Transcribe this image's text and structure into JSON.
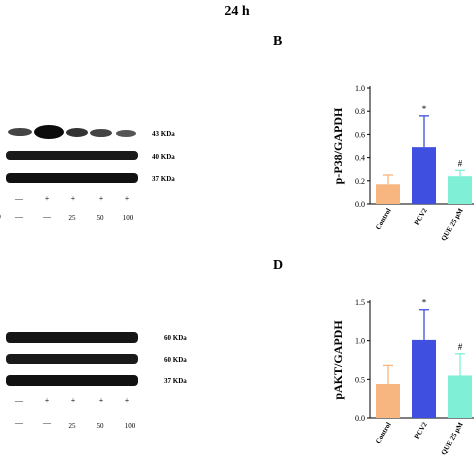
{
  "figure": {
    "title": "24 h",
    "panels": [
      {
        "letter": "B",
        "kda_labels": [
          "43 KDa",
          "40 KDa",
          "37 KDa"
        ],
        "dose_labels": [
          "25",
          "50",
          "100"
        ],
        "row_marks": [
          "—",
          "—",
          "+",
          "+",
          "+",
          "+"
        ],
        "lead_fragment": "0"
      },
      {
        "letter": "D",
        "kda_labels": [
          "60 KDa",
          "60 KDa",
          "37 KDa"
        ],
        "dose_labels": [
          "25",
          "50",
          "100"
        ],
        "row_marks": [
          "—",
          "+",
          "+",
          "+",
          "+"
        ],
        "row2_marks": [
          "—",
          "—"
        ]
      }
    ]
  },
  "colors": {
    "control": "#f7b57f",
    "pcv2": "#3f4fe0",
    "que": "#7ff0d6",
    "error_bar": "#3f4fe0"
  },
  "chart_data": [
    {
      "type": "bar",
      "ylabel": "p-P38/GAPDH",
      "ylim": [
        0,
        1.0
      ],
      "yticks": [
        "0.0",
        "0.2",
        "0.4",
        "0.6",
        "0.8",
        "1.0"
      ],
      "categories": [
        "Control",
        "PCV2",
        "QUE 25 μM",
        "QUE"
      ],
      "values": [
        0.17,
        0.49,
        0.24,
        null
      ],
      "errors": [
        0.08,
        0.27,
        0.05,
        null
      ],
      "annotations": [
        "",
        "*",
        "#",
        ""
      ]
    },
    {
      "type": "bar",
      "ylabel": "pAKT/GAPDH",
      "ylim": [
        0,
        1.5
      ],
      "yticks": [
        "0.0",
        "0.5",
        "1.0",
        "1.5"
      ],
      "categories": [
        "Control",
        "PCV2",
        "QUE 25 μM",
        "QUE"
      ],
      "values": [
        0.44,
        1.01,
        0.55,
        null
      ],
      "errors": [
        0.24,
        0.39,
        0.28,
        null
      ],
      "annotations": [
        "",
        "*",
        "#",
        ""
      ]
    }
  ]
}
